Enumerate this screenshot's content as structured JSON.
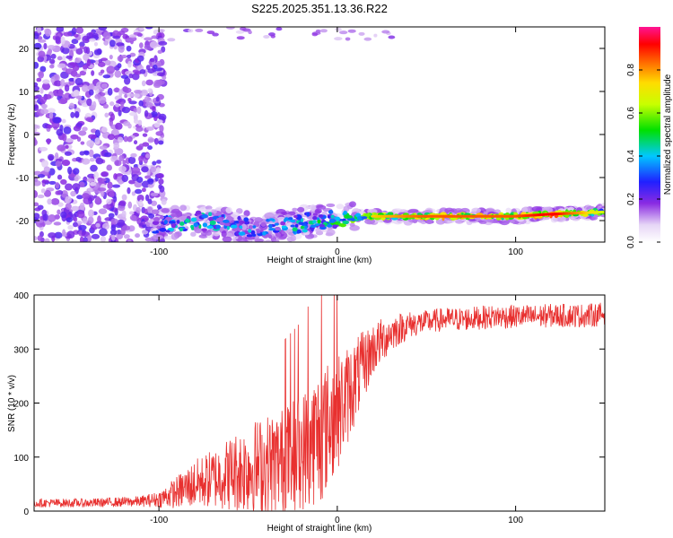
{
  "title": "S225.2025.351.13.36.R22",
  "chart_data": [
    {
      "type": "heatmap",
      "xlabel": "Height of straight line (km)",
      "ylabel": "Frequency (Hz)",
      "xlim": [
        -170,
        150
      ],
      "ylim": [
        -25,
        25
      ],
      "xticks": [
        -100,
        0,
        100
      ],
      "yticks": [
        -20,
        -10,
        0,
        10,
        20
      ],
      "colorbar": {
        "label": "Normalized spectral amplitude",
        "range": [
          0.0,
          1.0
        ],
        "ticks": [
          0.0,
          0.2,
          0.4,
          0.6,
          0.8
        ],
        "tick_labels": [
          "0.0",
          "0.2",
          "0.4",
          "0.6",
          "0.8"
        ],
        "colormap": "rainbow (white-purple-blue-cyan-green-yellow-red-magenta)"
      },
      "features": [
        {
          "name": "noise",
          "x_range": [
            -170,
            -105
          ],
          "y_range": [
            -25,
            25
          ],
          "amplitude": 0.25
        },
        {
          "name": "signal",
          "x": [
            -100,
            -80,
            -60,
            -40,
            -20,
            0,
            20,
            50,
            80,
            100,
            120,
            150
          ],
          "frequency": [
            -21,
            -20,
            -21,
            -22,
            -20.5,
            -19.5,
            -19,
            -19,
            -19,
            -19,
            -18.5,
            -18
          ],
          "amplitude": [
            0.2,
            0.3,
            0.25,
            0.2,
            0.3,
            0.35,
            0.5,
            0.6,
            0.6,
            0.6,
            0.7,
            0.4
          ]
        }
      ]
    },
    {
      "type": "line",
      "xlabel": "Height of straight line (km)",
      "ylabel": "SNR (10 * v/v)",
      "xlim": [
        -170,
        150
      ],
      "ylim": [
        0,
        400
      ],
      "xticks": [
        -100,
        0,
        100
      ],
      "yticks": [
        0,
        100,
        200,
        300,
        400
      ],
      "color": "#e8302f",
      "x": [
        -170,
        -140,
        -110,
        -100,
        -90,
        -80,
        -70,
        -60,
        -50,
        -40,
        -30,
        -20,
        -10,
        0,
        10,
        20,
        30,
        40,
        50,
        60,
        70,
        80,
        90,
        100,
        110,
        120,
        130,
        140,
        150
      ],
      "mean": [
        15,
        15,
        18,
        22,
        35,
        50,
        60,
        70,
        80,
        85,
        95,
        110,
        140,
        180,
        240,
        300,
        330,
        345,
        350,
        355,
        355,
        358,
        360,
        360,
        360,
        362,
        362,
        362,
        365
      ],
      "spread": [
        8,
        8,
        10,
        15,
        30,
        45,
        55,
        70,
        85,
        95,
        100,
        110,
        130,
        110,
        80,
        50,
        35,
        25,
        22,
        22,
        22,
        22,
        22,
        22,
        22,
        22,
        22,
        22,
        22
      ]
    }
  ]
}
